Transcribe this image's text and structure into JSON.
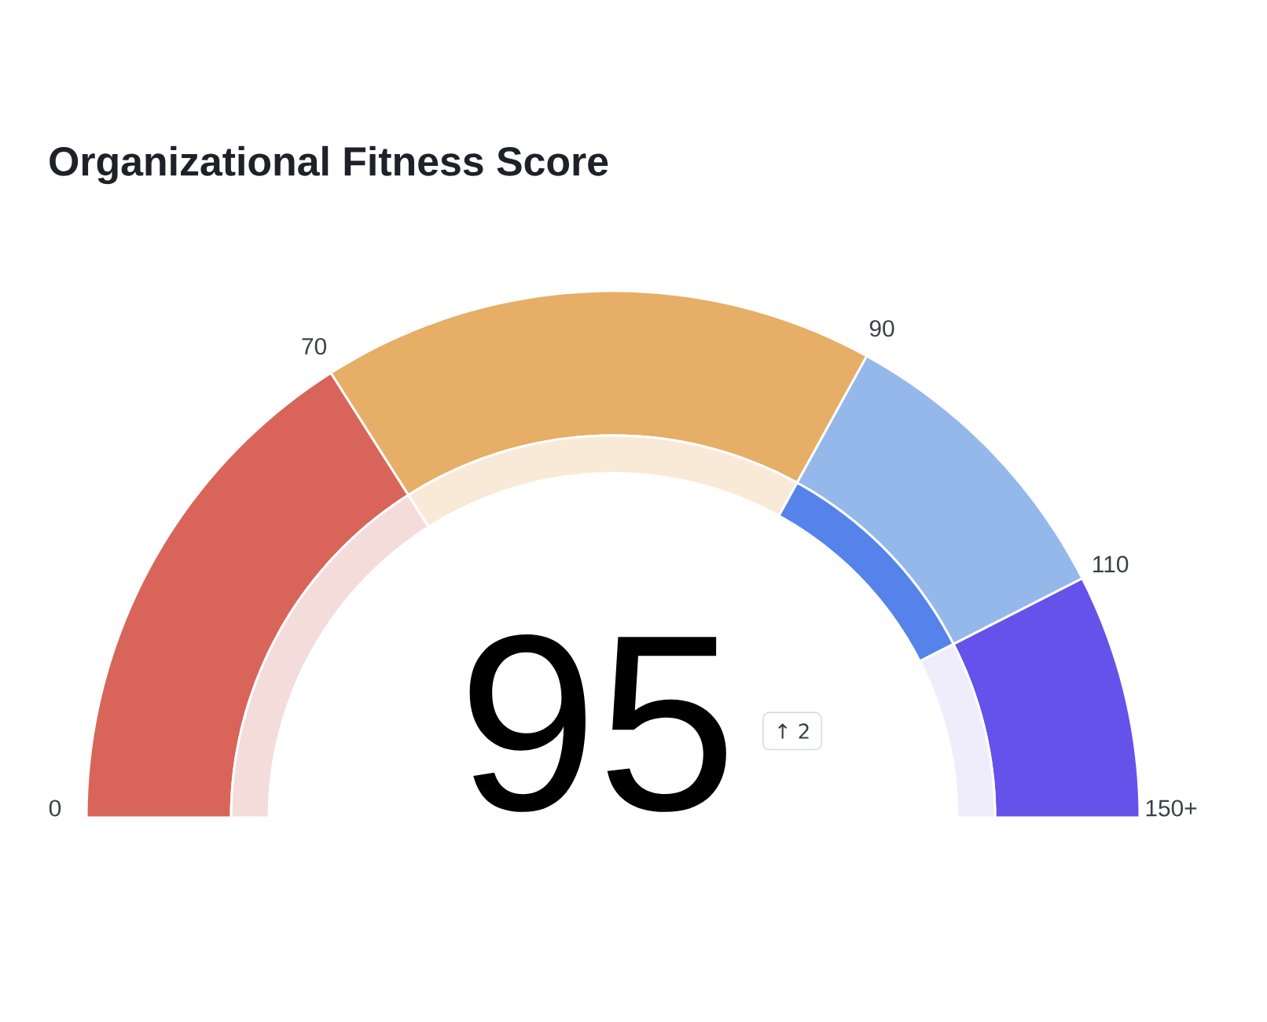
{
  "chart_data": {
    "type": "donut",
    "title": "Organizational Fitness Score",
    "categories": [
      null,
      null,
      null,
      null
    ],
    "series": [
      {
        "values": [
          32,
          34,
          19,
          15
        ],
        "colors": [
          "#d9645a",
          "#e6ae66",
          "#95b8ea",
          "#6552eb"
        ]
      },
      {
        "values": [
          32,
          34,
          19,
          15
        ],
        "colors": [
          "#f4dcdb",
          "#f9ead7",
          "#5583ea",
          "#efedfb"
        ]
      }
    ],
    "annotations": [
      "0",
      "70",
      "90",
      "110",
      "150+",
      "95",
      "↑ 2"
    ]
  }
}
